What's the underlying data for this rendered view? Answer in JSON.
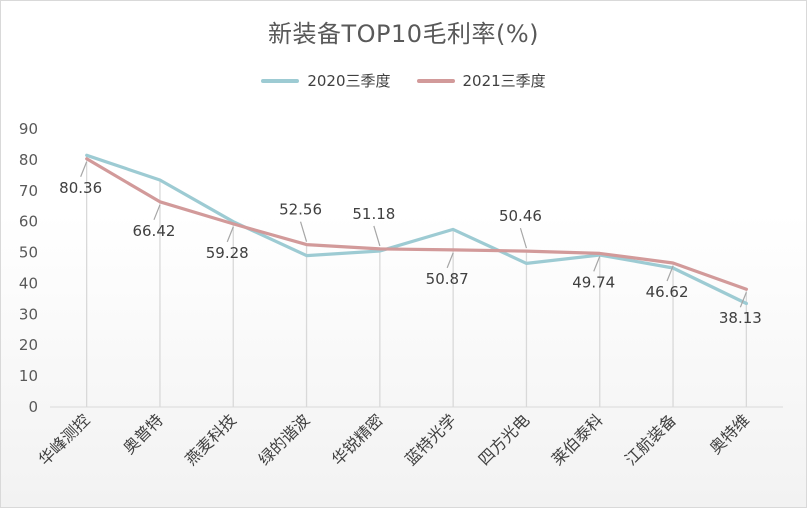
{
  "chart_data": {
    "type": "line",
    "title": "新装备TOP10毛利率(%)",
    "categories": [
      "华峰测控",
      "奥普特",
      "燕麦科技",
      "绿的谐波",
      "华锐精密",
      "蓝特光学",
      "四方光电",
      "莱伯泰科",
      "江航装备",
      "奥特维"
    ],
    "series": [
      {
        "name": "2020三季度",
        "color": "#9dcbd3",
        "values": [
          81.5,
          73.5,
          60.0,
          49.0,
          50.5,
          57.5,
          46.5,
          49.2,
          45.0,
          33.5
        ],
        "show_labels": false
      },
      {
        "name": "2021三季度",
        "color": "#d29a9a",
        "values": [
          80.36,
          66.42,
          59.28,
          52.56,
          51.18,
          50.87,
          50.46,
          49.74,
          46.62,
          38.13
        ],
        "labels": [
          "80.36",
          "66.42",
          "59.28",
          "52.56",
          "51.18",
          "50.87",
          "50.46",
          "49.74",
          "46.62",
          "38.13"
        ],
        "label_side": [
          "below",
          "below",
          "below",
          "above",
          "above",
          "below",
          "above",
          "below",
          "below",
          "below"
        ],
        "show_labels": true
      }
    ],
    "y_axis": {
      "min": 0,
      "max": 90,
      "step": 10,
      "ticks": [
        "0",
        "10",
        "20",
        "30",
        "40",
        "50",
        "60",
        "70",
        "80",
        "90"
      ]
    },
    "xlabel": "",
    "ylabel": "",
    "legend_position": "top",
    "grid": false,
    "drop_lines": true
  }
}
